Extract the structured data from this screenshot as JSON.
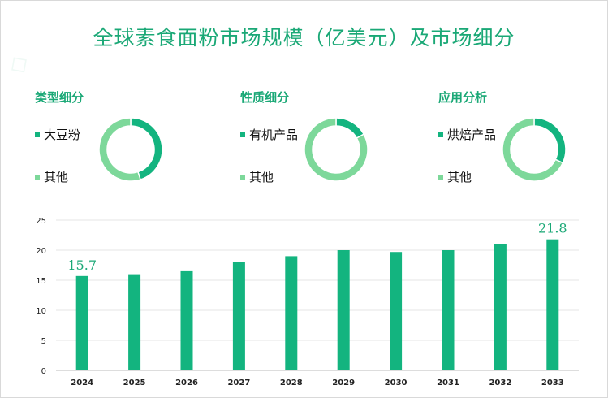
{
  "title": "全球素食面粉市场规模（亿美元）及市场细分",
  "colors": {
    "primary": "#13b47f",
    "secondary": "#7dd89a",
    "title": "#1aa876"
  },
  "panels": [
    {
      "title": "类型细分",
      "legend": [
        "大豆粉",
        "其他"
      ],
      "chart_data": {
        "type": "pie",
        "donut": true,
        "labels": [
          "大豆粉",
          "其他"
        ],
        "values": [
          45,
          55
        ],
        "colors": [
          "#13b47f",
          "#7dd89a"
        ]
      }
    },
    {
      "title": "性质细分",
      "legend": [
        "有机产品",
        "其他"
      ],
      "chart_data": {
        "type": "pie",
        "donut": true,
        "labels": [
          "有机产品",
          "其他"
        ],
        "values": [
          17,
          83
        ],
        "colors": [
          "#13b47f",
          "#7dd89a"
        ]
      }
    },
    {
      "title": "应用分析",
      "legend": [
        "烘焙产品",
        "其他"
      ],
      "chart_data": {
        "type": "pie",
        "donut": true,
        "labels": [
          "烘焙产品",
          "其他"
        ],
        "values": [
          32,
          68
        ],
        "colors": [
          "#13b47f",
          "#7dd89a"
        ]
      }
    }
  ],
  "chart_data": {
    "type": "bar",
    "categories": [
      "2024",
      "2025",
      "2026",
      "2027",
      "2028",
      "2029",
      "2030",
      "2031",
      "2032",
      "2033"
    ],
    "values": [
      15.7,
      16.0,
      16.5,
      18.0,
      19.0,
      20.0,
      19.7,
      20.0,
      21.0,
      21.8
    ],
    "data_labels": {
      "0": "15.7",
      "9": "21.8"
    },
    "yticks": [
      0,
      5,
      10,
      15,
      20,
      25
    ],
    "ylim": [
      0,
      25
    ],
    "grid": true,
    "color": "#13b47f"
  }
}
